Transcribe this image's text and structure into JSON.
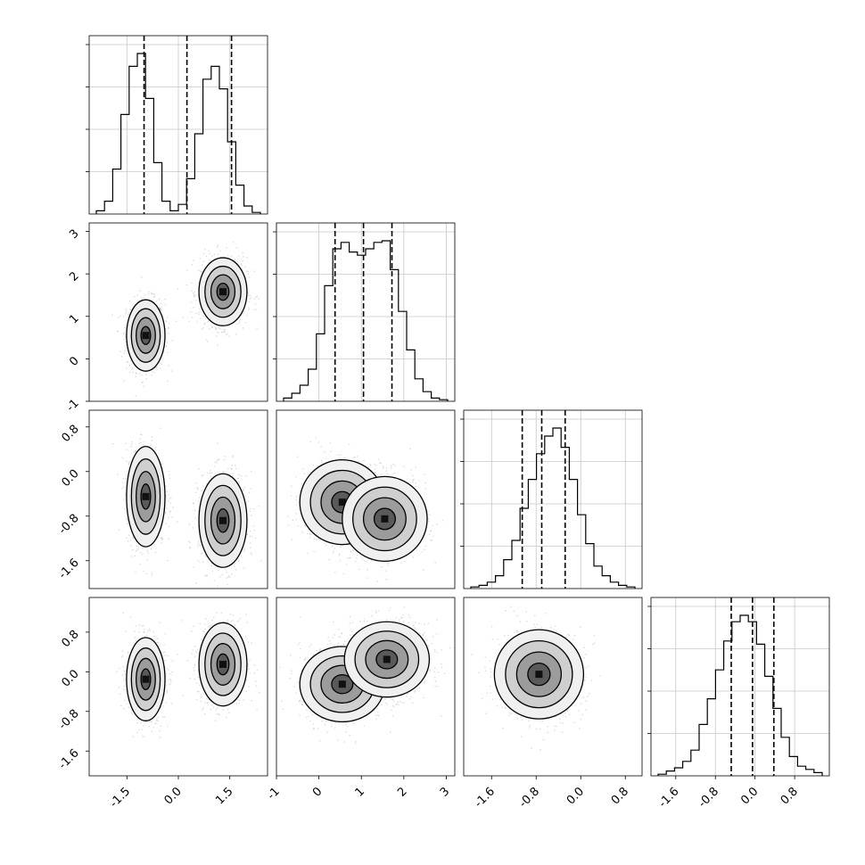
{
  "chart_data": {
    "type": "corner",
    "grid": true,
    "variables": [
      {
        "index": 0,
        "range": [
          -2.6,
          2.6
        ],
        "ticks": [
          -1.5,
          0.0,
          1.5
        ],
        "tick_labels": [
          "-1.5",
          "0.0",
          "1.5"
        ],
        "quantiles": [
          -1.0,
          0.25,
          1.55
        ]
      },
      {
        "index": 1,
        "range": [
          -1.0,
          3.2
        ],
        "ticks": [
          -1,
          0,
          1,
          2,
          3
        ],
        "tick_labels": [
          "-1",
          "0",
          "1",
          "2",
          "3"
        ],
        "quantiles": [
          0.38,
          1.05,
          1.72
        ]
      },
      {
        "index": 2,
        "range": [
          -2.1,
          1.1
        ],
        "ticks": [
          -1.6,
          -0.8,
          0.0,
          0.8
        ],
        "tick_labels": [
          "-1.6",
          "-0.8",
          "0.0",
          "0.8"
        ],
        "quantiles": [
          -1.05,
          -0.7,
          -0.28
        ]
      },
      {
        "index": 3,
        "range": [
          -2.1,
          1.5
        ],
        "ticks": [
          -1.6,
          -0.8,
          0.0,
          0.8
        ],
        "tick_labels": [
          "-1.6",
          "-0.8",
          "0.0",
          "0.8"
        ],
        "quantiles": [
          -0.48,
          -0.05,
          0.38
        ]
      }
    ],
    "histograms": [
      {
        "var": 0,
        "counts": [
          0.02,
          0.08,
          0.28,
          0.62,
          0.92,
          1.0,
          0.72,
          0.32,
          0.08,
          0.02,
          0.06,
          0.22,
          0.5,
          0.84,
          0.92,
          0.78,
          0.45,
          0.18,
          0.05,
          0.01
        ]
      },
      {
        "var": 1,
        "counts": [
          0.02,
          0.05,
          0.1,
          0.2,
          0.42,
          0.72,
          0.95,
          0.99,
          0.93,
          0.91,
          0.95,
          0.99,
          1.0,
          0.82,
          0.56,
          0.32,
          0.14,
          0.06,
          0.02,
          0.01
        ]
      },
      {
        "var": 2,
        "counts": [
          0.01,
          0.02,
          0.04,
          0.08,
          0.18,
          0.3,
          0.5,
          0.68,
          0.84,
          0.95,
          1.0,
          0.88,
          0.68,
          0.46,
          0.28,
          0.14,
          0.08,
          0.04,
          0.02,
          0.01
        ]
      },
      {
        "var": 3,
        "counts": [
          0.01,
          0.03,
          0.05,
          0.09,
          0.16,
          0.32,
          0.48,
          0.66,
          0.84,
          0.96,
          1.0,
          0.96,
          0.82,
          0.62,
          0.42,
          0.24,
          0.12,
          0.06,
          0.04,
          0.02
        ]
      }
    ],
    "joint_clusters": [
      {
        "x": 0,
        "y": 1,
        "clusters": [
          {
            "cx": -0.95,
            "cy": 0.55,
            "sx": 0.28,
            "sy": 0.42
          },
          {
            "cx": 1.3,
            "cy": 1.58,
            "sx": 0.35,
            "sy": 0.4
          }
        ]
      },
      {
        "x": 0,
        "y": 2,
        "clusters": [
          {
            "cx": -0.95,
            "cy": -0.45,
            "sx": 0.28,
            "sy": 0.45
          },
          {
            "cx": 1.3,
            "cy": -0.88,
            "sx": 0.35,
            "sy": 0.42
          }
        ]
      },
      {
        "x": 1,
        "y": 2,
        "clusters": [
          {
            "cx": 0.55,
            "cy": -0.55,
            "sx": 0.5,
            "sy": 0.38
          },
          {
            "cx": 1.55,
            "cy": -0.85,
            "sx": 0.5,
            "sy": 0.38
          }
        ]
      },
      {
        "x": 0,
        "y": 3,
        "clusters": [
          {
            "cx": -0.95,
            "cy": -0.15,
            "sx": 0.28,
            "sy": 0.42
          },
          {
            "cx": 1.3,
            "cy": 0.15,
            "sx": 0.35,
            "sy": 0.42
          }
        ]
      },
      {
        "x": 1,
        "y": 3,
        "clusters": [
          {
            "cx": 0.55,
            "cy": -0.25,
            "sx": 0.5,
            "sy": 0.38
          },
          {
            "cx": 1.6,
            "cy": 0.25,
            "sx": 0.5,
            "sy": 0.38
          }
        ]
      },
      {
        "x": 2,
        "y": 3,
        "clusters": [
          {
            "cx": -0.75,
            "cy": -0.05,
            "sx": 0.4,
            "sy": 0.45
          }
        ]
      }
    ],
    "contour_levels": [
      0.5,
      1.0,
      1.5,
      2.0
    ]
  }
}
